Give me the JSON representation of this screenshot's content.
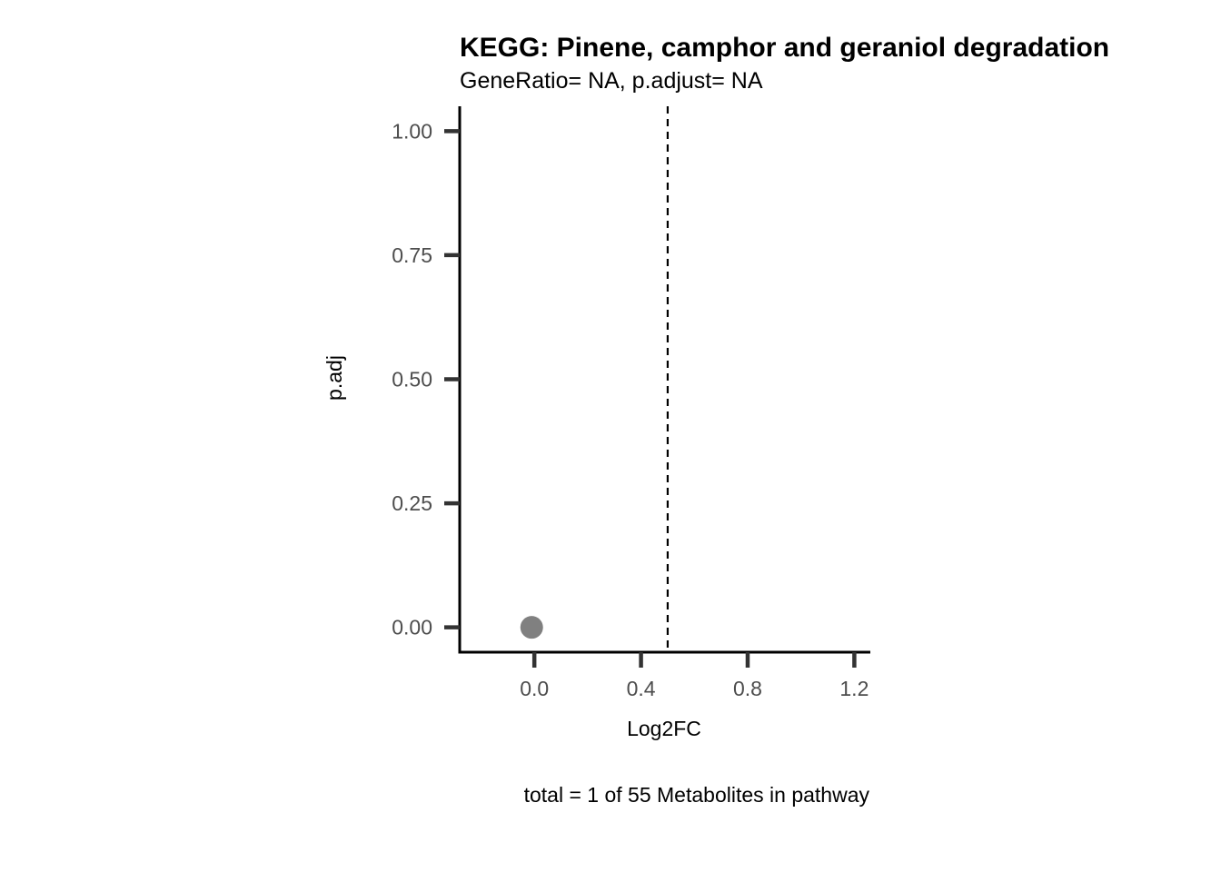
{
  "chart_data": {
    "type": "scatter",
    "title": "KEGG: Pinene, camphor and geraniol degradation",
    "subtitle": "GeneRatio= NA, p.adjust= NA",
    "xlabel": "Log2FC",
    "ylabel": "p.adj",
    "caption": "total = 1 of 55 Metabolites in pathway",
    "xlim": [
      -0.28,
      1.26
    ],
    "ylim": [
      -0.05,
      1.05
    ],
    "x_ticks": [
      0.0,
      0.4,
      0.8,
      1.2
    ],
    "x_tick_labels": [
      "0.0",
      "0.4",
      "0.8",
      "1.2"
    ],
    "y_ticks": [
      0.0,
      0.25,
      0.5,
      0.75,
      1.0
    ],
    "y_tick_labels": [
      "0.00",
      "0.25",
      "0.50",
      "0.75",
      "1.00"
    ],
    "points": [
      {
        "x": -0.01,
        "y": 0.0
      }
    ],
    "point_color": "#808080",
    "vline_x": 0.5,
    "grid": false
  }
}
